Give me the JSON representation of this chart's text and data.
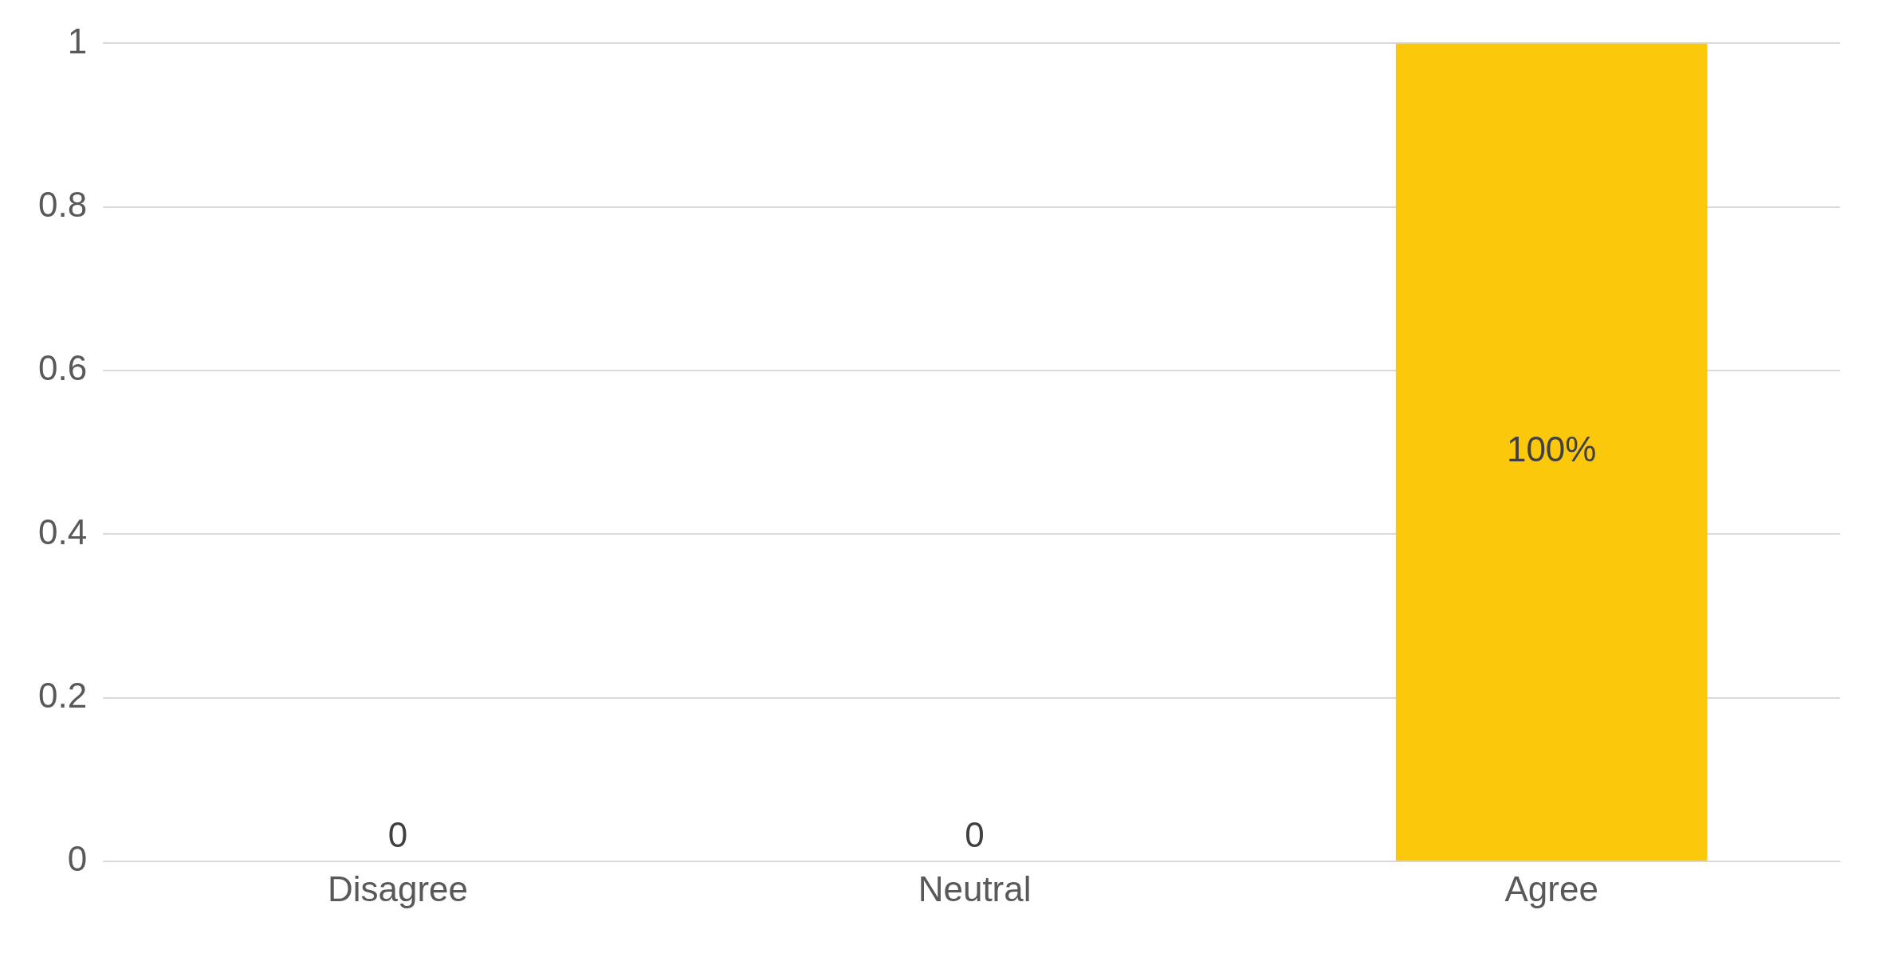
{
  "chart_data": {
    "type": "bar",
    "categories": [
      "Disagree",
      "Neutral",
      "Agree"
    ],
    "values": [
      0,
      0,
      1
    ],
    "color": "#fcc80c",
    "value_labels": [
      "0",
      "0",
      "100%"
    ],
    "ylim": [
      0,
      1
    ],
    "yticks": [
      0,
      0.2,
      0.4,
      0.6,
      0.8,
      1
    ],
    "grid": "y",
    "legend": false
  }
}
